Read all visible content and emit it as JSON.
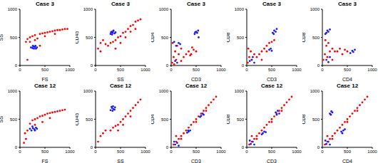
{
  "chart_data": [
    {
      "type": "scatter",
      "title": "Case 3",
      "x_label": "FS",
      "y_label": "SS",
      "xlim": [
        0,
        1000
      ],
      "ylim": [
        0,
        1000
      ],
      "xticks": [
        0,
        500,
        1000
      ],
      "yticks": [
        0,
        500,
        1000
      ],
      "series": [
        {
          "color": "#ff0000",
          "x": [
            120,
            150,
            200,
            250,
            300,
            350,
            400,
            450,
            500,
            550,
            600,
            650,
            700,
            750,
            800,
            850,
            900,
            950,
            150,
            200,
            300,
            500,
            700,
            400
          ],
          "y": [
            420,
            470,
            500,
            520,
            540,
            480,
            560,
            570,
            580,
            590,
            600,
            610,
            620,
            630,
            630,
            640,
            650,
            650,
            100,
            420,
            450,
            520,
            560,
            350
          ]
        },
        {
          "color": "#1a1aff",
          "x": [
            220,
            250,
            270,
            300,
            320,
            340,
            280,
            260,
            310
          ],
          "y": [
            320,
            310,
            340,
            330,
            300,
            320,
            300,
            350,
            350
          ]
        }
      ]
    },
    {
      "type": "scatter",
      "title": "Case 3",
      "x_label": "SS",
      "y_label": "CD45",
      "xlim": [
        0,
        1000
      ],
      "ylim": [
        0,
        1000
      ],
      "xticks": [
        0,
        500,
        1000
      ],
      "yticks": [
        0,
        500,
        1000
      ],
      "series": [
        {
          "color": "#ff0000",
          "x": [
            50,
            100,
            150,
            200,
            100,
            250,
            300,
            350,
            400,
            450,
            500,
            550,
            600,
            650,
            700,
            750,
            800,
            850,
            900,
            500,
            600,
            700,
            400,
            800
          ],
          "y": [
            300,
            400,
            450,
            380,
            250,
            350,
            400,
            420,
            450,
            500,
            520,
            580,
            600,
            650,
            700,
            720,
            780,
            800,
            820,
            400,
            500,
            600,
            300,
            650
          ]
        },
        {
          "color": "#1a1aff",
          "x": [
            300,
            320,
            340,
            360,
            380,
            330,
            350,
            400,
            310
          ],
          "y": [
            560,
            600,
            580,
            620,
            570,
            550,
            610,
            590,
            590
          ]
        }
      ]
    },
    {
      "type": "scatter",
      "title": "Case 3",
      "x_label": "CD3",
      "y_label": "CD4",
      "xlim": [
        0,
        1000
      ],
      "ylim": [
        0,
        1000
      ],
      "xticks": [
        0,
        500,
        1000
      ],
      "yticks": [
        0,
        500,
        1000
      ],
      "series": [
        {
          "color": "#ff0000",
          "x": [
            20,
            50,
            80,
            100,
            150,
            200,
            120,
            250,
            300,
            350,
            400,
            450,
            500,
            380,
            420,
            30,
            60,
            200
          ],
          "y": [
            50,
            150,
            250,
            100,
            200,
            300,
            350,
            150,
            200,
            250,
            200,
            280,
            250,
            180,
            320,
            400,
            20,
            80
          ]
        },
        {
          "color": "#1a1aff",
          "x": [
            470,
            500,
            520,
            540,
            480,
            100,
            150,
            180,
            80,
            120,
            60,
            550
          ],
          "y": [
            560,
            600,
            580,
            620,
            590,
            350,
            400,
            380,
            80,
            50,
            420,
            500
          ]
        }
      ]
    },
    {
      "type": "scatter",
      "title": "Case 3",
      "x_label": "CD3",
      "y_label": "CD8",
      "xlim": [
        0,
        1000
      ],
      "ylim": [
        0,
        1000
      ],
      "xticks": [
        0,
        500,
        1000
      ],
      "yticks": [
        0,
        500,
        1000
      ],
      "series": [
        {
          "color": "#ff0000",
          "x": [
            20,
            50,
            100,
            150,
            200,
            250,
            300,
            350,
            400,
            450,
            500,
            550,
            80,
            300,
            400,
            30
          ],
          "y": [
            50,
            150,
            100,
            200,
            150,
            200,
            250,
            300,
            350,
            400,
            420,
            450,
            250,
            100,
            250,
            300
          ]
        },
        {
          "color": "#1a1aff",
          "x": [
            520,
            550,
            580,
            600,
            540,
            450,
            480,
            500,
            100,
            120,
            60,
            150
          ],
          "y": [
            580,
            620,
            600,
            650,
            560,
            280,
            300,
            260,
            100,
            150,
            80,
            50
          ]
        }
      ]
    },
    {
      "type": "scatter",
      "title": "Case 3",
      "x_label": "CD4",
      "y_label": "CD8",
      "xlim": [
        0,
        1000
      ],
      "ylim": [
        0,
        1000
      ],
      "xticks": [
        0,
        500,
        1000
      ],
      "yticks": [
        0,
        500,
        1000
      ],
      "series": [
        {
          "color": "#ff0000",
          "x": [
            20,
            50,
            80,
            100,
            150,
            200,
            250,
            300,
            350,
            400,
            450,
            60,
            120,
            200,
            500
          ],
          "y": [
            100,
            200,
            350,
            150,
            250,
            300,
            250,
            250,
            300,
            200,
            280,
            450,
            400,
            100,
            250
          ]
        },
        {
          "color": "#1a1aff",
          "x": [
            80,
            100,
            120,
            150,
            60,
            560,
            600,
            620,
            650,
            80,
            120,
            150
          ],
          "y": [
            580,
            620,
            600,
            640,
            560,
            220,
            260,
            240,
            280,
            100,
            60,
            150
          ]
        }
      ]
    },
    {
      "type": "scatter",
      "title": "Case 12",
      "x_label": "FS",
      "y_label": "SS",
      "xlim": [
        0,
        1000
      ],
      "ylim": [
        0,
        1000
      ],
      "xticks": [
        0,
        500,
        1000
      ],
      "yticks": [
        0,
        500,
        1000
      ],
      "series": [
        {
          "color": "#ff0000",
          "x": [
            80,
            120,
            150,
            200,
            250,
            300,
            350,
            400,
            450,
            500,
            550,
            600,
            650,
            700,
            750,
            800,
            850,
            900,
            450,
            600,
            300,
            100
          ],
          "y": [
            80,
            150,
            300,
            420,
            480,
            500,
            520,
            550,
            560,
            580,
            600,
            610,
            620,
            630,
            640,
            650,
            660,
            670,
            450,
            520,
            400,
            250
          ]
        },
        {
          "color": "#1a1aff",
          "x": [
            200,
            230,
            260,
            290,
            320,
            250,
            300,
            340
          ],
          "y": [
            330,
            300,
            340,
            320,
            350,
            370,
            300,
            330
          ]
        }
      ]
    },
    {
      "type": "scatter",
      "title": "Case 12",
      "x_label": "SS",
      "y_label": "CD45",
      "xlim": [
        0,
        1000
      ],
      "ylim": [
        0,
        1000
      ],
      "xticks": [
        0,
        500,
        1000
      ],
      "yticks": [
        0,
        500,
        1000
      ],
      "series": [
        {
          "color": "#ff0000",
          "x": [
            50,
            100,
            150,
            200,
            300,
            350,
            400,
            450,
            500,
            550,
            600,
            650,
            700,
            750,
            800,
            850,
            900,
            550,
            700,
            450
          ],
          "y": [
            100,
            200,
            250,
            300,
            300,
            350,
            380,
            400,
            450,
            500,
            550,
            600,
            650,
            700,
            750,
            800,
            850,
            400,
            550,
            300
          ]
        },
        {
          "color": "#1a1aff",
          "x": [
            300,
            330,
            360,
            390,
            340,
            320,
            380,
            350
          ],
          "y": [
            660,
            700,
            680,
            710,
            650,
            720,
            670,
            730
          ]
        }
      ]
    },
    {
      "type": "scatter",
      "title": "Case 12",
      "x_label": "CD3",
      "y_label": "CD4",
      "xlim": [
        0,
        1000
      ],
      "ylim": [
        0,
        1000
      ],
      "xticks": [
        0,
        500,
        1000
      ],
      "yticks": [
        0,
        500,
        1000
      ],
      "series": [
        {
          "color": "#ff0000",
          "x": [
            50,
            100,
            150,
            200,
            250,
            300,
            350,
            400,
            450,
            500,
            550,
            600,
            650,
            700,
            750,
            800,
            850,
            900,
            100,
            200,
            500,
            700
          ],
          "y": [
            50,
            100,
            150,
            200,
            250,
            300,
            350,
            400,
            450,
            500,
            550,
            600,
            650,
            700,
            750,
            800,
            850,
            900,
            200,
            150,
            450,
            650
          ]
        },
        {
          "color": "#1a1aff",
          "x": [
            320,
            350,
            380,
            340,
            600,
            630,
            650,
            580,
            80,
            120,
            60,
            150
          ],
          "y": [
            260,
            280,
            300,
            300,
            560,
            600,
            580,
            540,
            50,
            80,
            100,
            30
          ]
        }
      ]
    },
    {
      "type": "scatter",
      "title": "Case 12",
      "x_label": "CD3",
      "y_label": "CD8",
      "xlim": [
        0,
        1000
      ],
      "ylim": [
        0,
        1000
      ],
      "xticks": [
        0,
        500,
        1000
      ],
      "yticks": [
        0,
        500,
        1000
      ],
      "series": [
        {
          "color": "#ff0000",
          "x": [
            50,
            100,
            150,
            200,
            250,
            300,
            350,
            400,
            450,
            500,
            550,
            600,
            650,
            700,
            750,
            800,
            850,
            900,
            100,
            200,
            500,
            700
          ],
          "y": [
            50,
            100,
            150,
            200,
            250,
            300,
            350,
            400,
            450,
            500,
            550,
            600,
            650,
            700,
            750,
            800,
            850,
            900,
            200,
            150,
            450,
            650
          ]
        },
        {
          "color": "#1a1aff",
          "x": [
            580,
            620,
            650,
            600,
            320,
            350,
            300,
            380,
            80,
            120,
            60,
            150
          ],
          "y": [
            620,
            650,
            600,
            580,
            250,
            280,
            230,
            270,
            60,
            100,
            120,
            50
          ]
        }
      ]
    },
    {
      "type": "scatter",
      "title": "Case 12",
      "x_label": "CD4",
      "y_label": "CD8",
      "xlim": [
        0,
        1000
      ],
      "ylim": [
        0,
        1000
      ],
      "xticks": [
        0,
        500,
        1000
      ],
      "yticks": [
        0,
        500,
        1000
      ],
      "series": [
        {
          "color": "#ff0000",
          "x": [
            50,
            100,
            150,
            200,
            250,
            300,
            350,
            400,
            450,
            500,
            550,
            600,
            650,
            700,
            750,
            800,
            850,
            900,
            100,
            200,
            500,
            700
          ],
          "y": [
            50,
            100,
            150,
            200,
            250,
            300,
            350,
            400,
            450,
            500,
            550,
            600,
            650,
            700,
            750,
            800,
            850,
            900,
            200,
            150,
            450,
            650
          ]
        },
        {
          "color": "#1a1aff",
          "x": [
            150,
            180,
            200,
            170,
            380,
            420,
            400,
            450,
            80,
            120,
            60,
            150
          ],
          "y": [
            600,
            640,
            620,
            580,
            280,
            300,
            250,
            320,
            60,
            100,
            120,
            50
          ]
        }
      ]
    }
  ]
}
